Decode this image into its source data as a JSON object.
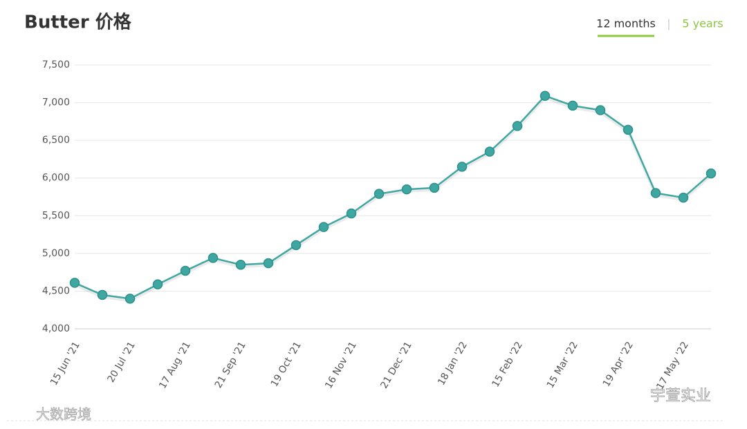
{
  "chart_data": {
    "type": "line",
    "title": "Butter 价格",
    "categories": [
      "15 Jun '21",
      null,
      "20 Jul '21",
      null,
      "17 Aug '21",
      null,
      "21 Sep '21",
      null,
      "19 Oct '21",
      null,
      "16 Nov '21",
      null,
      "21 Dec '21",
      null,
      "18 Jan '22",
      null,
      "15 Feb '22",
      null,
      "15 Mar '22",
      null,
      "19 Apr '22",
      null,
      "17 May '22",
      null
    ],
    "values": [
      4610,
      4450,
      4400,
      4590,
      4770,
      4940,
      4850,
      4870,
      5110,
      5350,
      5530,
      5790,
      5850,
      5870,
      6150,
      6350,
      6690,
      7090,
      6960,
      6900,
      6640,
      5800,
      5740,
      6060
    ],
    "color": "#3fa7a2",
    "ylim": [
      4000,
      7500
    ],
    "yticks": [
      {
        "value": 4000,
        "label": "4,000"
      },
      {
        "value": 4500,
        "label": "4,500"
      },
      {
        "value": 5000,
        "label": "5,000"
      },
      {
        "value": 5500,
        "label": "5,500"
      },
      {
        "value": 6000,
        "label": "6,000"
      },
      {
        "value": 6500,
        "label": "6,500"
      },
      {
        "value": 7000,
        "label": "7,000"
      },
      {
        "value": 7500,
        "label": "7,500"
      }
    ],
    "grid": true
  },
  "toggles": [
    "12 months",
    "5 years"
  ],
  "watermarks": [
    "大数跨境",
    "宇萱实业"
  ]
}
